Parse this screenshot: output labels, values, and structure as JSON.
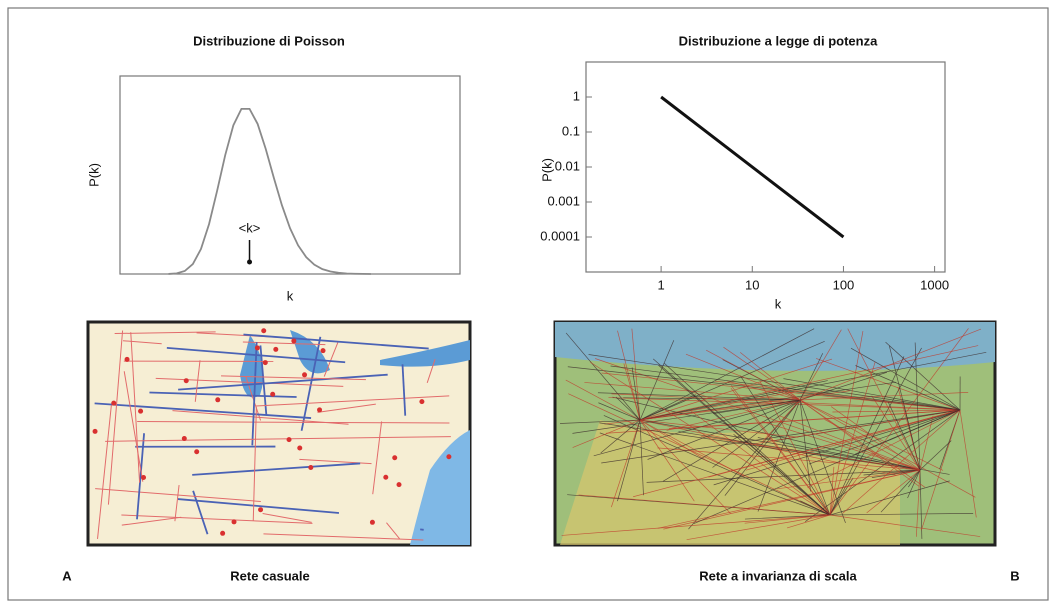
{
  "chart_data": [
    {
      "type": "line",
      "title": "Distribuzione di Poisson",
      "xlabel": "k",
      "ylabel": "P(k)",
      "x": [
        0,
        1,
        2,
        3,
        4,
        5,
        6,
        7,
        8,
        9,
        10,
        11,
        12,
        13,
        14,
        15,
        16,
        17,
        18,
        19,
        20,
        21,
        22,
        23,
        24,
        25
      ],
      "series": [
        {
          "color": "#8a8a8a",
          "values": [
            4.54e-05,
            0.000454,
            0.00227,
            0.00757,
            0.0189,
            0.0378,
            0.0631,
            0.0901,
            0.1126,
            0.1251,
            0.1251,
            0.1137,
            0.0948,
            0.0729,
            0.0521,
            0.0347,
            0.0217,
            0.0128,
            0.0071,
            0.0037,
            0.0019,
            0.0009,
            0.0004,
            0.0002,
            0.0001,
            0.0
          ]
        }
      ],
      "xlim": [
        -6,
        36
      ],
      "ylim": [
        0,
        0.15
      ],
      "annotation": {
        "text": "<k>",
        "x": 10
      }
    },
    {
      "type": "line",
      "title": "Distribuzione a legge di potenza",
      "xlabel": "k",
      "ylabel": "P(k)",
      "log_x": true,
      "log_y": true,
      "x": [
        1,
        100
      ],
      "series": [
        {
          "color": "#111111",
          "values": [
            1,
            0.0001
          ]
        }
      ],
      "xlim": [
        0.15,
        1300
      ],
      "ylim": [
        1e-05,
        10
      ],
      "xticks": [
        1,
        10,
        100,
        1000
      ],
      "yticks": [
        1,
        0.1,
        0.01,
        0.001,
        0.0001
      ]
    }
  ],
  "figure": {
    "captions": [
      "Rete casuale",
      "Rete a invarianza di scala"
    ],
    "panel_labels": [
      "A",
      "B"
    ]
  }
}
